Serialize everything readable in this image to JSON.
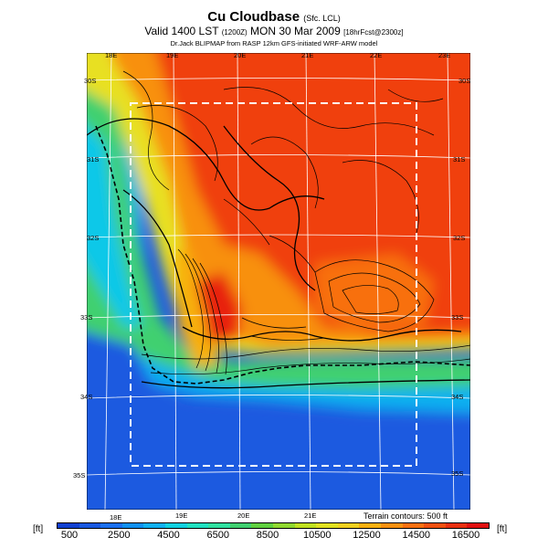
{
  "title": {
    "main": "Cu Cloudbase",
    "qualifier": "(Sfc. LCL)",
    "valid_prefix": "Valid 1400 LST",
    "utc": "(1200Z)",
    "date": "MON 30 Mar 2009",
    "forecast": "[18hrFcst@2300z]",
    "credit": "Dr.Jack BLIPMAP from RASP 12km GFS-initiated WRF-ARW model"
  },
  "map": {
    "lon_labels_top": [
      "18E",
      "19E",
      "20E",
      "21E",
      "22E",
      "23E"
    ],
    "lon_labels_bottom": [
      "18E",
      "19E",
      "20E",
      "21E"
    ],
    "lat_labels_left": [
      "30S",
      "31S",
      "32S",
      "33S",
      "34S",
      "35S"
    ],
    "lat_labels_right": [
      "30S",
      "31S",
      "32S",
      "33S",
      "34S",
      "35S"
    ],
    "terrain_note": "Terrain contours: 500 ft"
  },
  "colorbar": {
    "unit_left": "[ft]",
    "unit_right": "[ft]",
    "tick_labels": [
      "500",
      "2500",
      "4500",
      "6500",
      "8500",
      "10500",
      "12500",
      "14500",
      "16500"
    ],
    "colors": [
      "#1040d0",
      "#1858e0",
      "#1a70f0",
      "#1090f0",
      "#10b0f0",
      "#10d0e0",
      "#20e0c0",
      "#30e0a0",
      "#40d070",
      "#60d040",
      "#90d830",
      "#c0e020",
      "#e0e020",
      "#f0d020",
      "#f8b010",
      "#f89010",
      "#f87010",
      "#f05010",
      "#e83010",
      "#e01010"
    ]
  }
}
